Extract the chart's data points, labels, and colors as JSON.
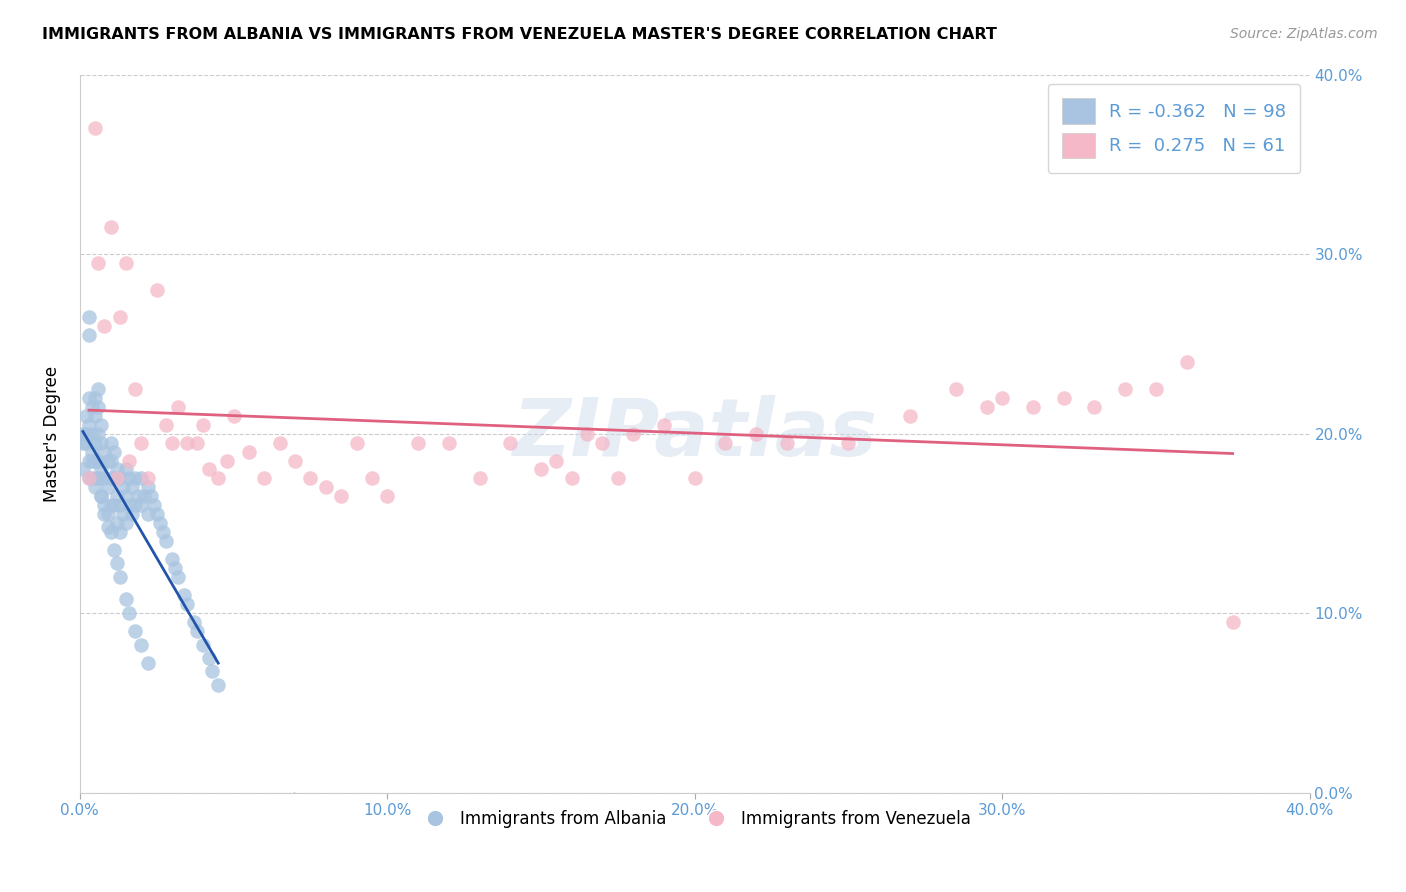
{
  "title": "IMMIGRANTS FROM ALBANIA VS IMMIGRANTS FROM VENEZUELA MASTER'S DEGREE CORRELATION CHART",
  "source": "Source: ZipAtlas.com",
  "ylabel": "Master's Degree",
  "xlim": [
    0.0,
    0.4
  ],
  "ylim": [
    0.0,
    0.4
  ],
  "xtick_labels": [
    "0.0%",
    "10.0%",
    "20.0%",
    "30.0%",
    "40.0%"
  ],
  "xtick_vals": [
    0.0,
    0.1,
    0.2,
    0.3,
    0.4
  ],
  "ytick_vals": [
    0.0,
    0.1,
    0.2,
    0.3,
    0.4
  ],
  "ytick_labels_right": [
    "0.0%",
    "10.0%",
    "20.0%",
    "30.0%",
    "40.0%"
  ],
  "albania_color": "#a8c4e0",
  "venezuela_color": "#f4b8c8",
  "albania_line_color": "#2255aa",
  "venezuela_line_color": "#e06080",
  "watermark": "ZIPatlas",
  "albania_x": [
    0.001,
    0.001,
    0.002,
    0.002,
    0.003,
    0.003,
    0.003,
    0.003,
    0.004,
    0.004,
    0.004,
    0.005,
    0.005,
    0.005,
    0.005,
    0.006,
    0.006,
    0.006,
    0.006,
    0.006,
    0.007,
    0.007,
    0.007,
    0.007,
    0.008,
    0.008,
    0.008,
    0.009,
    0.009,
    0.009,
    0.01,
    0.01,
    0.01,
    0.01,
    0.011,
    0.011,
    0.011,
    0.012,
    0.012,
    0.012,
    0.013,
    0.013,
    0.013,
    0.014,
    0.014,
    0.015,
    0.015,
    0.015,
    0.016,
    0.016,
    0.017,
    0.017,
    0.018,
    0.018,
    0.019,
    0.02,
    0.02,
    0.021,
    0.022,
    0.022,
    0.023,
    0.024,
    0.025,
    0.026,
    0.027,
    0.028,
    0.03,
    0.031,
    0.032,
    0.034,
    0.035,
    0.037,
    0.038,
    0.04,
    0.042,
    0.043,
    0.045,
    0.001,
    0.002,
    0.003,
    0.003,
    0.004,
    0.004,
    0.005,
    0.005,
    0.006,
    0.007,
    0.008,
    0.009,
    0.01,
    0.011,
    0.012,
    0.013,
    0.015,
    0.016,
    0.018,
    0.02,
    0.022
  ],
  "albania_y": [
    0.195,
    0.18,
    0.21,
    0.195,
    0.265,
    0.255,
    0.22,
    0.205,
    0.215,
    0.2,
    0.19,
    0.22,
    0.21,
    0.195,
    0.185,
    0.225,
    0.215,
    0.2,
    0.185,
    0.175,
    0.205,
    0.195,
    0.18,
    0.165,
    0.19,
    0.175,
    0.16,
    0.185,
    0.17,
    0.155,
    0.195,
    0.185,
    0.175,
    0.16,
    0.19,
    0.175,
    0.16,
    0.18,
    0.165,
    0.15,
    0.175,
    0.16,
    0.145,
    0.17,
    0.155,
    0.18,
    0.165,
    0.15,
    0.175,
    0.16,
    0.17,
    0.155,
    0.175,
    0.16,
    0.165,
    0.175,
    0.16,
    0.165,
    0.17,
    0.155,
    0.165,
    0.16,
    0.155,
    0.15,
    0.145,
    0.14,
    0.13,
    0.125,
    0.12,
    0.11,
    0.105,
    0.095,
    0.09,
    0.082,
    0.075,
    0.068,
    0.06,
    0.2,
    0.2,
    0.185,
    0.175,
    0.185,
    0.175,
    0.185,
    0.17,
    0.175,
    0.165,
    0.155,
    0.148,
    0.145,
    0.135,
    0.128,
    0.12,
    0.108,
    0.1,
    0.09,
    0.082,
    0.072
  ],
  "venezuela_x": [
    0.003,
    0.005,
    0.006,
    0.008,
    0.01,
    0.012,
    0.013,
    0.015,
    0.016,
    0.018,
    0.02,
    0.022,
    0.025,
    0.028,
    0.03,
    0.032,
    0.035,
    0.038,
    0.04,
    0.042,
    0.045,
    0.048,
    0.05,
    0.055,
    0.06,
    0.065,
    0.07,
    0.075,
    0.08,
    0.085,
    0.09,
    0.095,
    0.1,
    0.11,
    0.12,
    0.13,
    0.14,
    0.15,
    0.155,
    0.16,
    0.165,
    0.17,
    0.175,
    0.18,
    0.19,
    0.2,
    0.21,
    0.22,
    0.23,
    0.25,
    0.27,
    0.285,
    0.295,
    0.3,
    0.31,
    0.32,
    0.33,
    0.34,
    0.35,
    0.36,
    0.375
  ],
  "venezuela_y": [
    0.175,
    0.37,
    0.295,
    0.26,
    0.315,
    0.175,
    0.265,
    0.295,
    0.185,
    0.225,
    0.195,
    0.175,
    0.28,
    0.205,
    0.195,
    0.215,
    0.195,
    0.195,
    0.205,
    0.18,
    0.175,
    0.185,
    0.21,
    0.19,
    0.175,
    0.195,
    0.185,
    0.175,
    0.17,
    0.165,
    0.195,
    0.175,
    0.165,
    0.195,
    0.195,
    0.175,
    0.195,
    0.18,
    0.185,
    0.175,
    0.2,
    0.195,
    0.175,
    0.2,
    0.205,
    0.175,
    0.195,
    0.2,
    0.195,
    0.195,
    0.21,
    0.225,
    0.215,
    0.22,
    0.215,
    0.22,
    0.215,
    0.225,
    0.225,
    0.24,
    0.095
  ]
}
